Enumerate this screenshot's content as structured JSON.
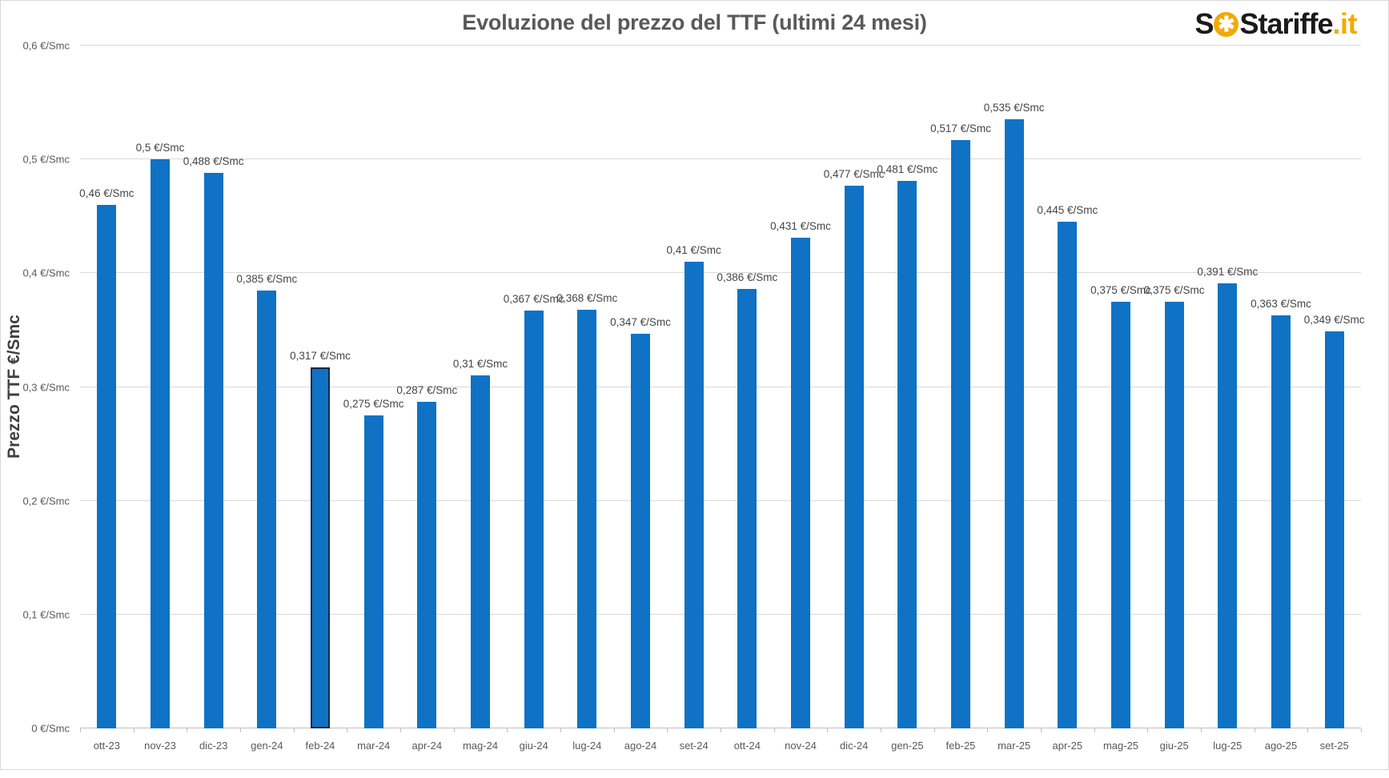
{
  "header": {
    "title": "Evoluzione del prezzo del TTF (ultimi 24 mesi)"
  },
  "logo": {
    "s1": "S",
    "o_glyph": "✱",
    "s2": "S",
    "name": "tariffe",
    "tld": ".it",
    "o_color": "#F2A900",
    "tld_color": "#F0AB00"
  },
  "chart_data": {
    "type": "bar",
    "title": "Evoluzione del prezzo del TTF (ultimi 24 mesi)",
    "ylabel": "Prezzo TTF €/Smc",
    "xlabel": "",
    "unit": "€/Smc",
    "categories": [
      "ott-23",
      "nov-23",
      "dic-23",
      "gen-24",
      "feb-24",
      "mar-24",
      "apr-24",
      "mag-24",
      "giu-24",
      "lug-24",
      "ago-24",
      "set-24",
      "ott-24",
      "nov-24",
      "dic-24",
      "gen-25",
      "feb-25",
      "mar-25",
      "apr-25",
      "mag-25",
      "giu-25",
      "lug-25",
      "ago-25",
      "set-25"
    ],
    "values": [
      0.46,
      0.5,
      0.488,
      0.385,
      0.317,
      0.275,
      0.287,
      0.31,
      0.367,
      0.368,
      0.347,
      0.41,
      0.386,
      0.431,
      0.477,
      0.481,
      0.517,
      0.535,
      0.445,
      0.375,
      0.375,
      0.391,
      0.363,
      0.349
    ],
    "value_labels": [
      "0,46 €/Smc",
      "0,5 €/Smc",
      "0,488 €/Smc",
      "0,385 €/Smc",
      "0,317 €/Smc",
      "0,275 €/Smc",
      "0,287 €/Smc",
      "0,31 €/Smc",
      "0,367 €/Smc",
      "0,368 €/Smc",
      "0,347 €/Smc",
      "0,41 €/Smc",
      "0,386 €/Smc",
      "0,431 €/Smc",
      "0,477 €/Smc",
      "0,481 €/Smc",
      "0,517 €/Smc",
      "0,535 €/Smc",
      "0,445 €/Smc",
      "0,375 €/Smc",
      "0,375 €/Smc",
      "0,391 €/Smc",
      "0,363 €/Smc",
      "0,349 €/Smc"
    ],
    "yticks": [
      {
        "value": 0.0,
        "label": "0 €/Smc"
      },
      {
        "value": 0.1,
        "label": "0,1 €/Smc"
      },
      {
        "value": 0.2,
        "label": "0,2 €/Smc"
      },
      {
        "value": 0.3,
        "label": "0,3 €/Smc"
      },
      {
        "value": 0.4,
        "label": "0,4 €/Smc"
      },
      {
        "value": 0.5,
        "label": "0,5 €/Smc"
      },
      {
        "value": 0.6,
        "label": "0,6 €/Smc"
      }
    ],
    "ylim": [
      0,
      0.6
    ],
    "grid": true,
    "legend_position": "none",
    "bar_color": "#0F72C4",
    "highlighted_category": "feb-24",
    "highlighted_index": 4,
    "highlight_border_color": "#1A2740",
    "gridline_color": "#D9D9D9",
    "axis_line_color": "#BFBFBF"
  }
}
